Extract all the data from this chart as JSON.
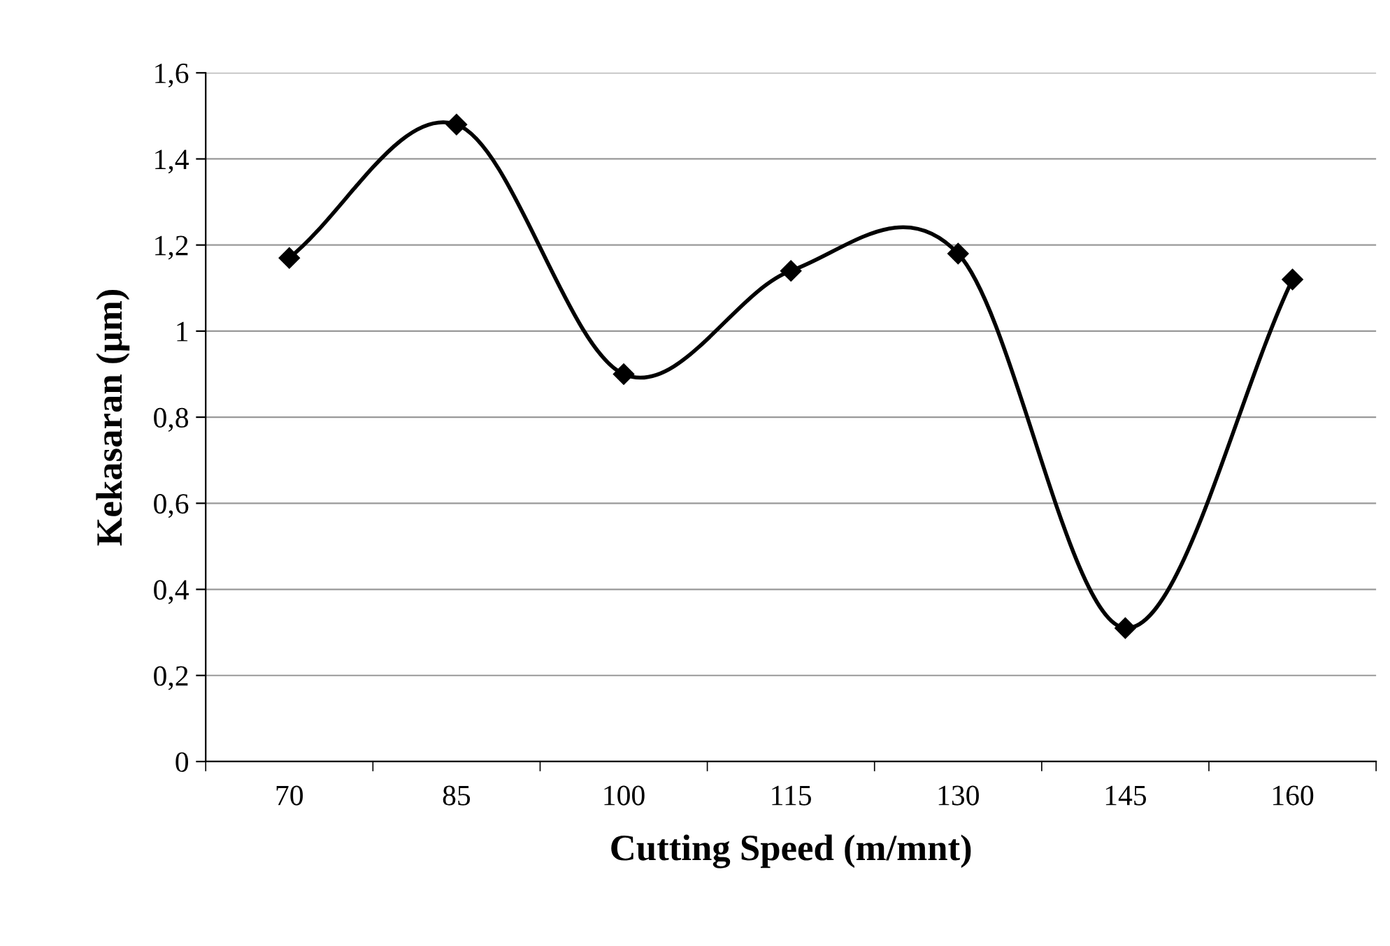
{
  "chart_data": {
    "type": "line",
    "xlabel": "Cutting Speed (m/mnt)",
    "ylabel": "Kekasaran (µm)",
    "categories": [
      "70",
      "85",
      "100",
      "115",
      "130",
      "145",
      "160"
    ],
    "series": [
      {
        "color": "#000000",
        "values": [
          1.17,
          1.48,
          0.9,
          1.14,
          1.18,
          0.31,
          1.12
        ]
      }
    ],
    "ylim": [
      0,
      1.6
    ],
    "yticks": [
      0,
      {
        "value": 0.2,
        "label": "0,2"
      },
      {
        "value": 0.4,
        "label": "0,4"
      },
      {
        "value": 0.6,
        "label": "0,6"
      },
      {
        "value": 0.8,
        "label": "0,8"
      },
      1,
      {
        "value": 1.2,
        "label": "1,2"
      },
      {
        "value": 1.4,
        "label": "1,4"
      },
      {
        "value": 1.6,
        "label": "1,6"
      }
    ],
    "grid": "y",
    "marker": "diamond",
    "line_style": "solid"
  }
}
